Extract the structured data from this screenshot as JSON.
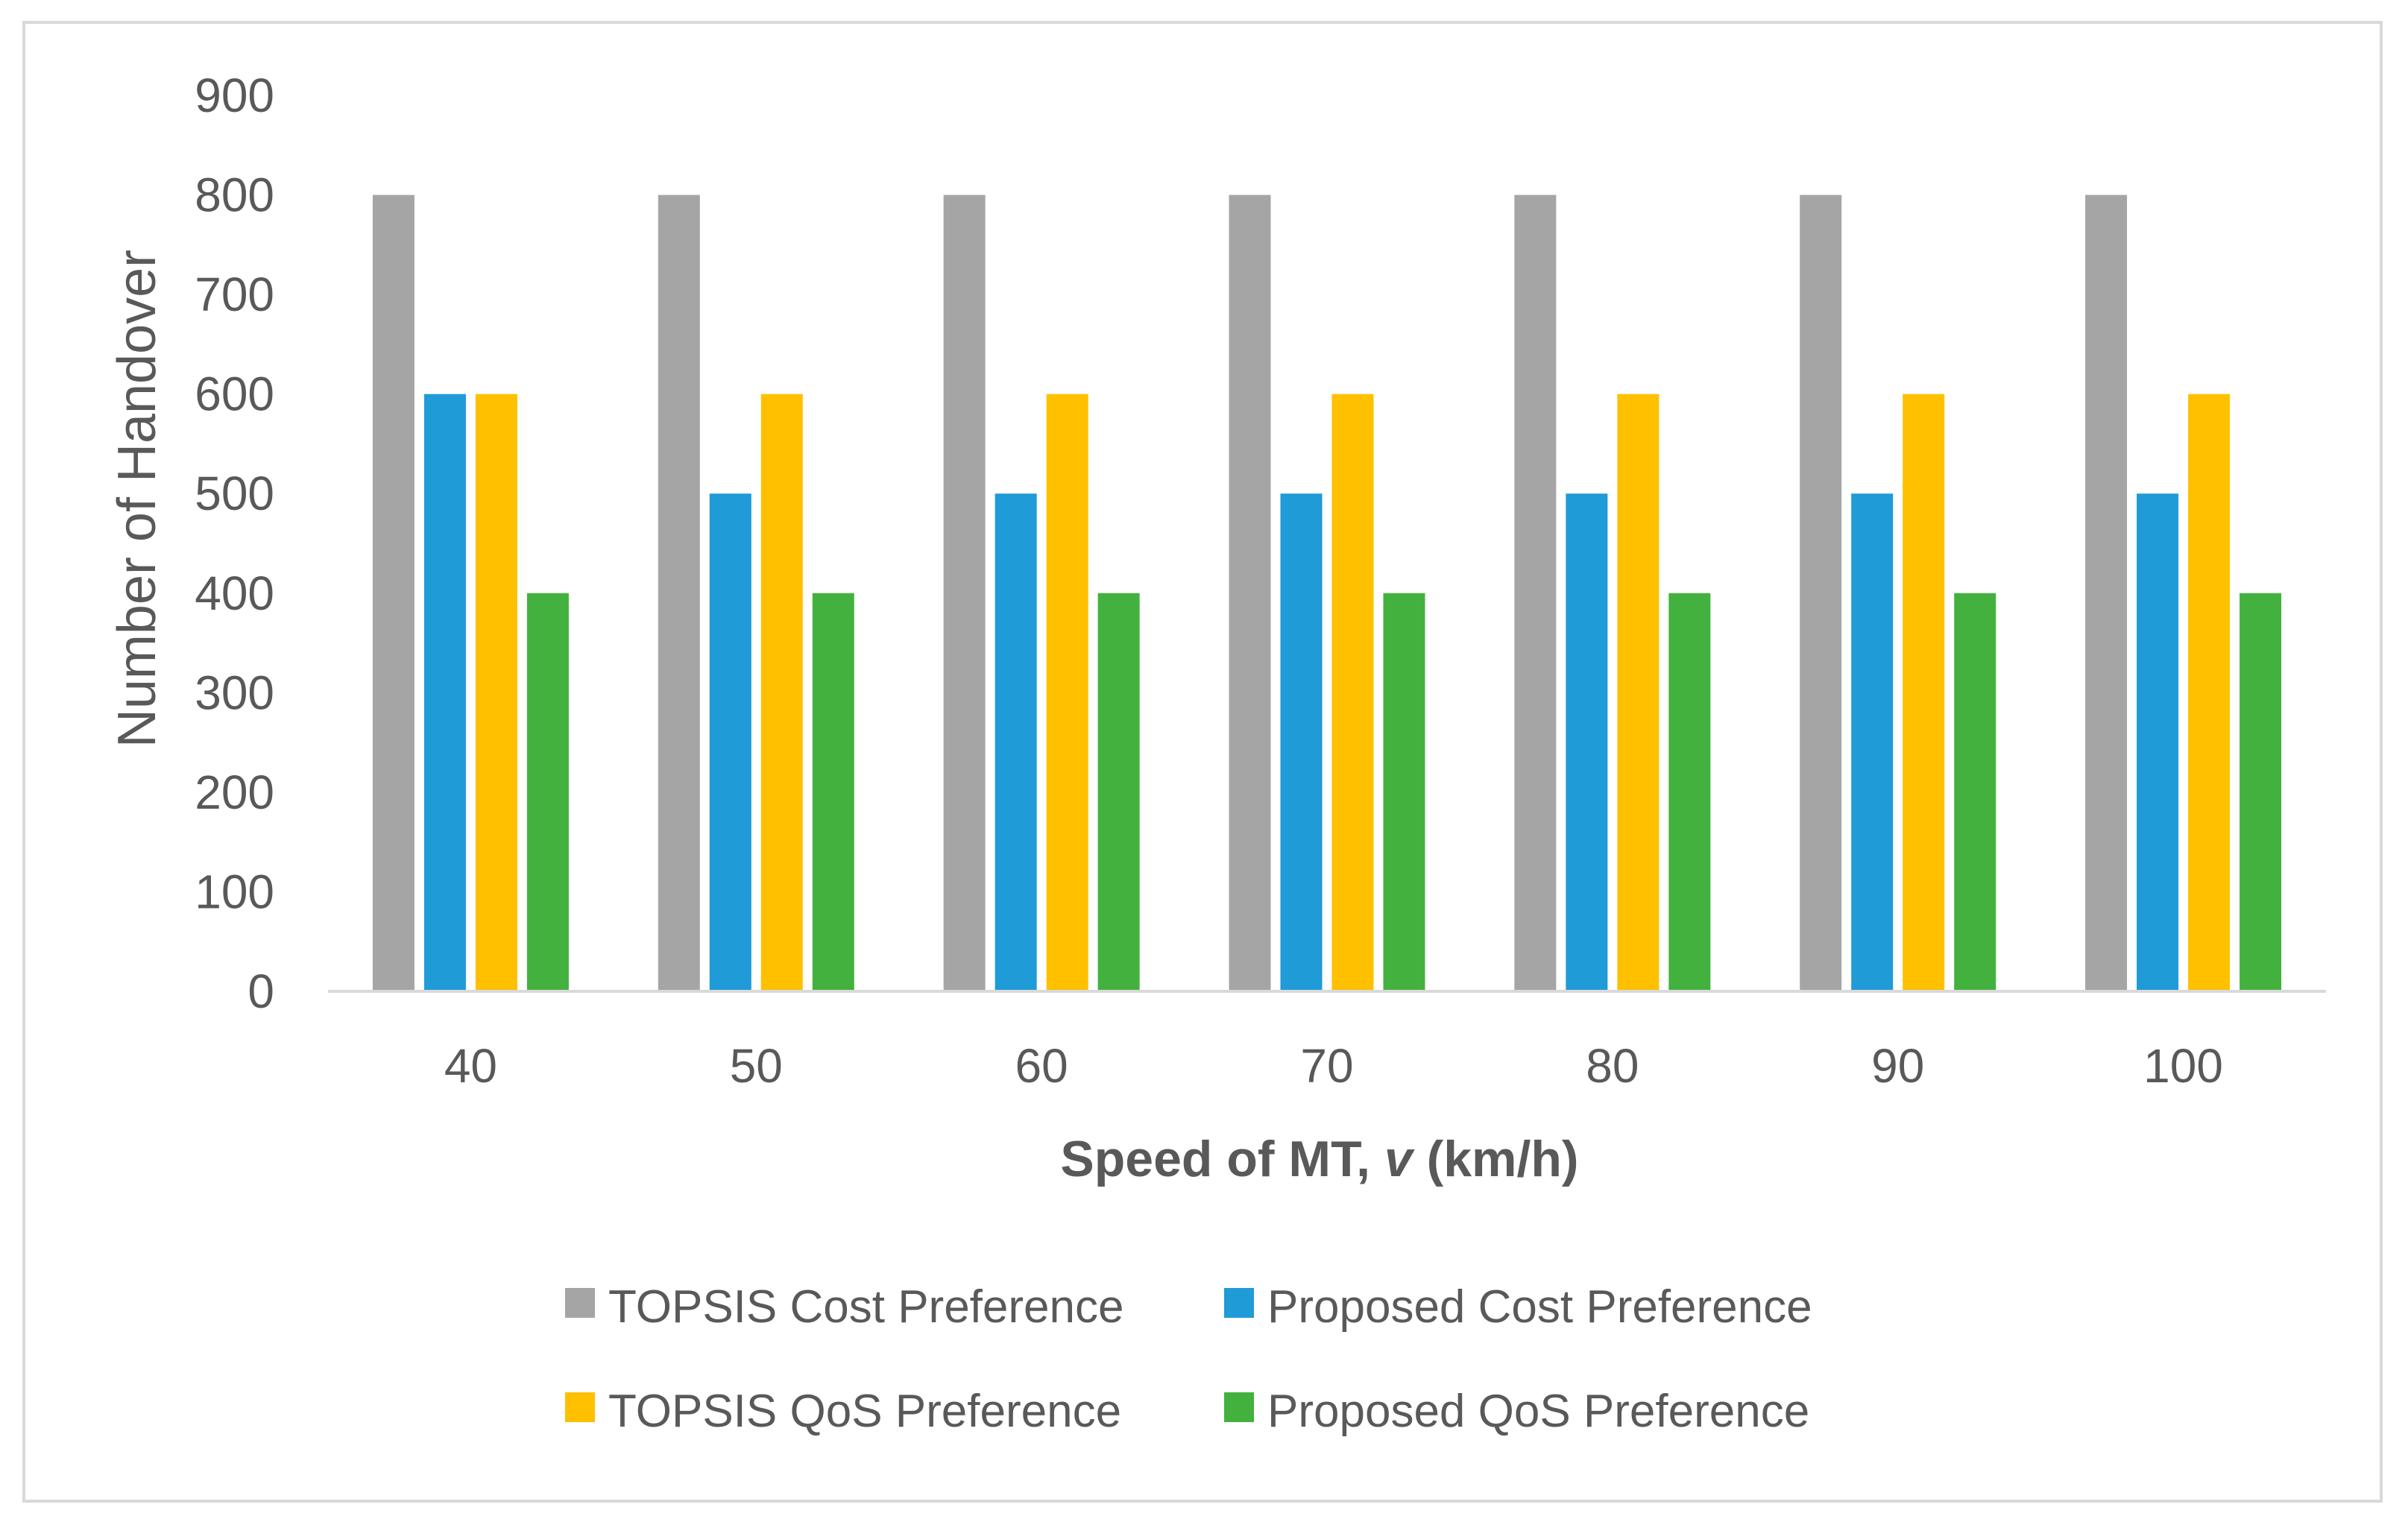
{
  "chart_data": {
    "type": "bar",
    "title": "",
    "xlabel": "Speed of MT, v (km/h)",
    "xlabel_parts": {
      "before": "Speed of MT, ",
      "italic": "v",
      "after": " (km/h)"
    },
    "ylabel": "Number of Handover",
    "ylim": [
      0,
      900
    ],
    "yticks": [
      0,
      100,
      200,
      300,
      400,
      500,
      600,
      700,
      800,
      900
    ],
    "grid": false,
    "legend_position": "bottom",
    "categories": [
      "40",
      "50",
      "60",
      "70",
      "80",
      "90",
      "100"
    ],
    "series": [
      {
        "name": "TOPSIS Cost Preference",
        "color": "#a5a5a5",
        "values": [
          800,
          800,
          800,
          800,
          800,
          800,
          800
        ]
      },
      {
        "name": "Proposed Cost Preference",
        "color": "#1f9bd7",
        "values": [
          600,
          500,
          500,
          500,
          500,
          500,
          500
        ]
      },
      {
        "name": "TOPSIS QoS Preference",
        "color": "#ffc000",
        "values": [
          600,
          600,
          600,
          600,
          600,
          600,
          600
        ]
      },
      {
        "name": "Proposed QoS Preference",
        "color": "#43b13e",
        "values": [
          400,
          400,
          400,
          400,
          400,
          400,
          400
        ]
      }
    ]
  }
}
